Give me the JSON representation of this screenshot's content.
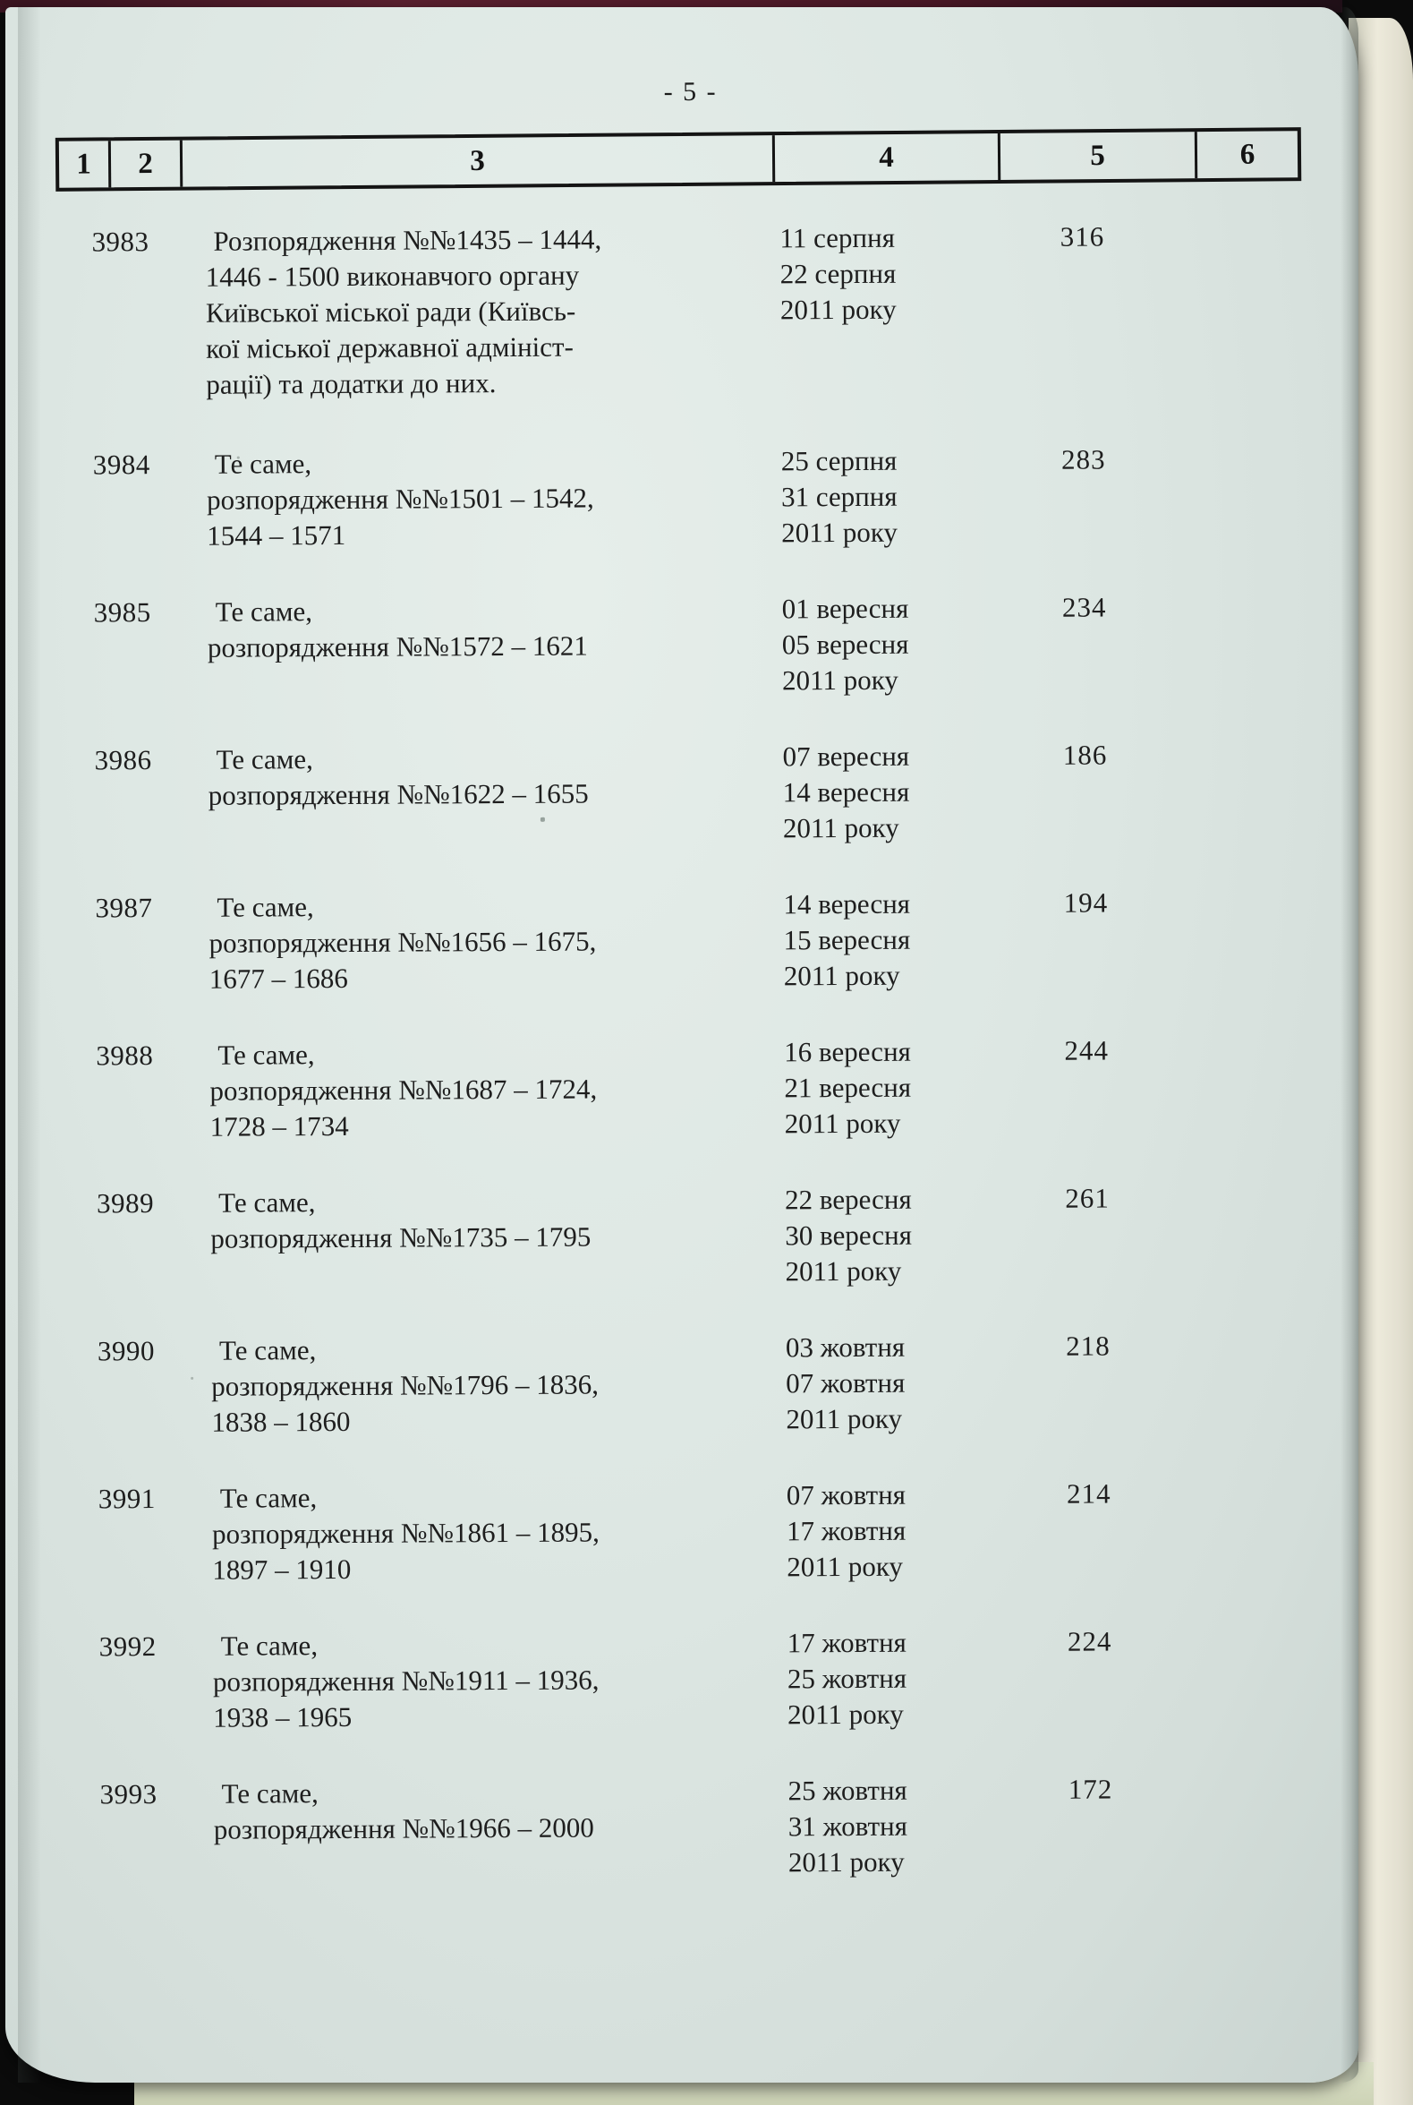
{
  "page": {
    "number_label": "- 5 -"
  },
  "table": {
    "header": [
      "1",
      "2",
      "3",
      "4",
      "5",
      "6"
    ],
    "rows": [
      {
        "id": "3983",
        "description": [
          "Розпорядження №№1435 – 1444,",
          "1446 - 1500 виконавчого органу",
          "Київської міської ради (Київсь-",
          "кої міської державної адмініст-",
          "рації) та додатки до них."
        ],
        "dates": [
          "11 серпня",
          "22 серпня",
          "2011 року"
        ],
        "pages": "316"
      },
      {
        "id": "3984",
        "description": [
          "Те саме,",
          "розпорядження №№1501 – 1542,",
          "1544 – 1571"
        ],
        "dates": [
          "25 серпня",
          "31 серпня",
          "2011 року"
        ],
        "pages": "283"
      },
      {
        "id": "3985",
        "description": [
          "Те саме,",
          "розпорядження №№1572 – 1621"
        ],
        "dates": [
          "01 вересня",
          "05 вересня",
          "2011 року"
        ],
        "pages": "234"
      },
      {
        "id": "3986",
        "description": [
          "Те саме,",
          "розпорядження №№1622 – 1655"
        ],
        "dates": [
          "07 вересня",
          "14 вересня",
          "2011 року"
        ],
        "pages": "186"
      },
      {
        "id": "3987",
        "description": [
          "Те саме,",
          "розпорядження №№1656 – 1675,",
          "1677 – 1686"
        ],
        "dates": [
          "14 вересня",
          "15 вересня",
          "2011 року"
        ],
        "pages": "194"
      },
      {
        "id": "3988",
        "description": [
          "Те саме,",
          "розпорядження №№1687 – 1724,",
          "1728 – 1734"
        ],
        "dates": [
          "16 вересня",
          "21 вересня",
          "2011 року"
        ],
        "pages": "244"
      },
      {
        "id": "3989",
        "description": [
          "Те саме,",
          "розпорядження №№1735 – 1795"
        ],
        "dates": [
          "22 вересня",
          "30 вересня",
          "2011 року"
        ],
        "pages": "261"
      },
      {
        "id": "3990",
        "description": [
          "Те саме,",
          "розпорядження №№1796 – 1836,",
          "1838 – 1860"
        ],
        "dates": [
          "03 жовтня",
          "07 жовтня",
          "2011 року"
        ],
        "pages": "218"
      },
      {
        "id": "3991",
        "description": [
          "Те саме,",
          "розпорядження №№1861 – 1895,",
          "1897 – 1910"
        ],
        "dates": [
          "07 жовтня",
          "17 жовтня",
          "2011 року"
        ],
        "pages": "214"
      },
      {
        "id": "3992",
        "description": [
          "Те саме,",
          "розпорядження №№1911 – 1936,",
          "1938 – 1965"
        ],
        "dates": [
          "17 жовтня",
          "25 жовтня",
          "2011 року"
        ],
        "pages": "224"
      },
      {
        "id": "3993",
        "description": [
          "Те саме,",
          "розпорядження №№1966 – 2000"
        ],
        "dates": [
          "25 жовтня",
          "31 жовтня",
          "2011 року"
        ],
        "pages": "172"
      }
    ]
  },
  "colors": {
    "paper": "#dde7e3",
    "ink": "#1c1c1c",
    "background": "#0b0b0b",
    "under_pages": "#e9e7d7",
    "top_strip": "#571f2d"
  }
}
